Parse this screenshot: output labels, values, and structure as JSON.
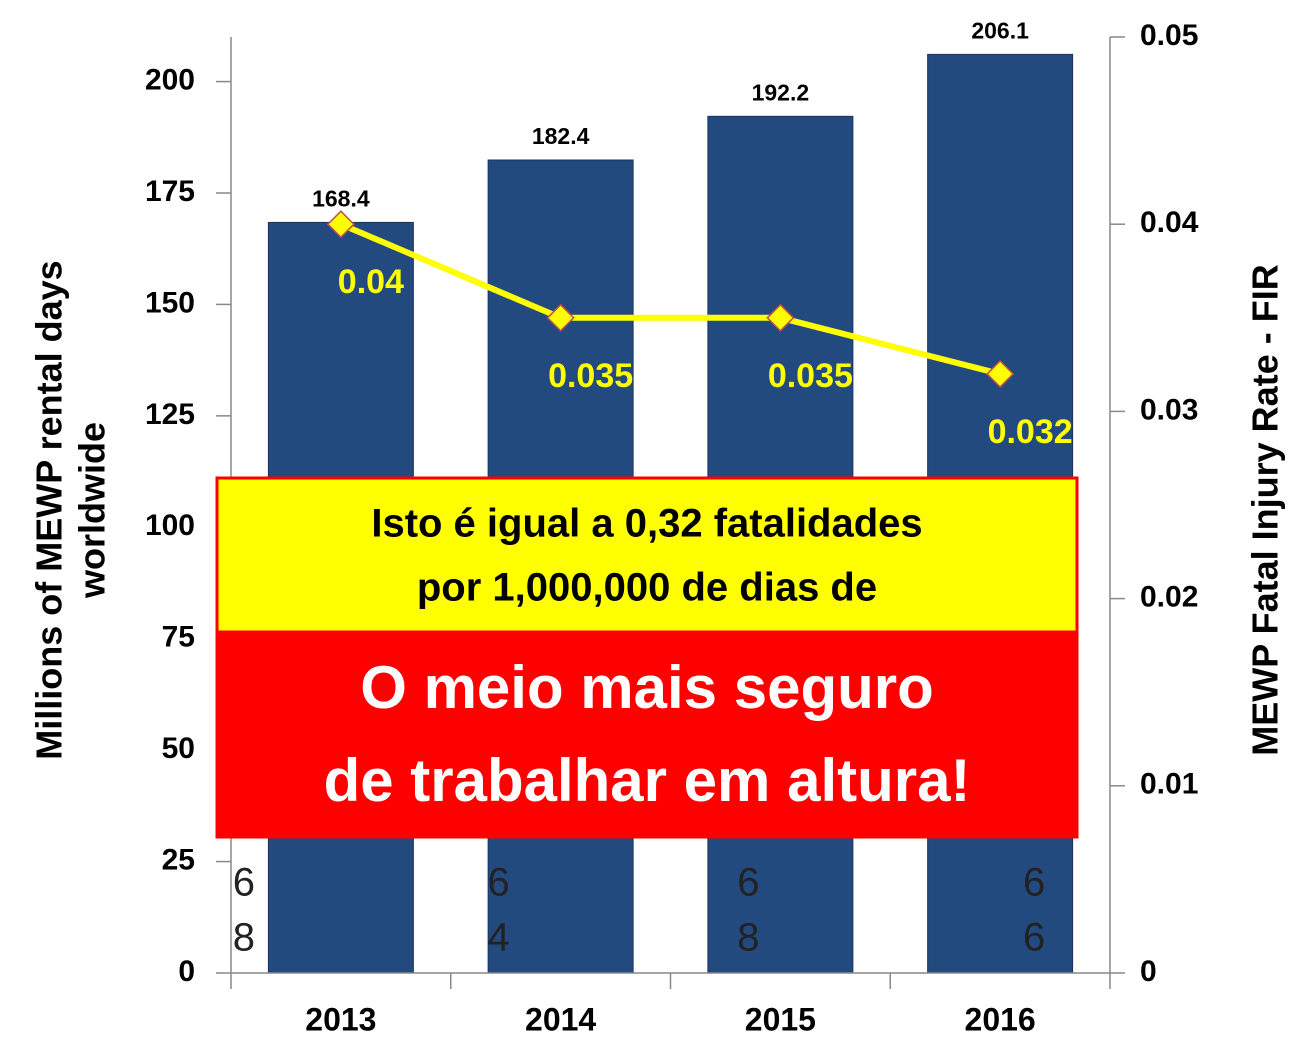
{
  "chart_data": {
    "type": "bar",
    "categories": [
      "2013",
      "2014",
      "2015",
      "2016"
    ],
    "series": [
      {
        "name": "Millions of MEWP rental days worldwide",
        "type": "bar",
        "color": "#234a7e",
        "values": [
          168.4,
          182.4,
          192.2,
          206.1
        ]
      },
      {
        "name": "MEWP Fatal Injury Rate - FIR",
        "type": "line",
        "axis": "y2",
        "color": "#ffff00",
        "values": [
          0.04,
          0.035,
          0.035,
          0.032
        ]
      }
    ],
    "y_label": [
      "Millions of MEWP rental days",
      "worldwide"
    ],
    "y2_label": "MEWP Fatal Injury Rate - FIR",
    "ylim": [
      0,
      210
    ],
    "yticks": [
      0,
      25,
      50,
      75,
      100,
      125,
      150,
      175,
      200
    ],
    "y2lim": [
      0,
      0.05
    ],
    "y2ticks": [
      0,
      0.01,
      0.02,
      0.03,
      0.04,
      0.05
    ],
    "inner_labels": [
      [
        "6",
        "8"
      ],
      [
        "6",
        "4"
      ],
      [
        "6",
        "8"
      ],
      [
        "6",
        "6"
      ]
    ],
    "grid": false
  },
  "callouts": [
    {
      "lines": [
        "Isto é igual a 0,32 fatalidades",
        "por 1,000,000 de dias de"
      ]
    },
    {
      "lines": [
        "O meio mais seguro",
        "de trabalhar em altura!"
      ]
    }
  ]
}
